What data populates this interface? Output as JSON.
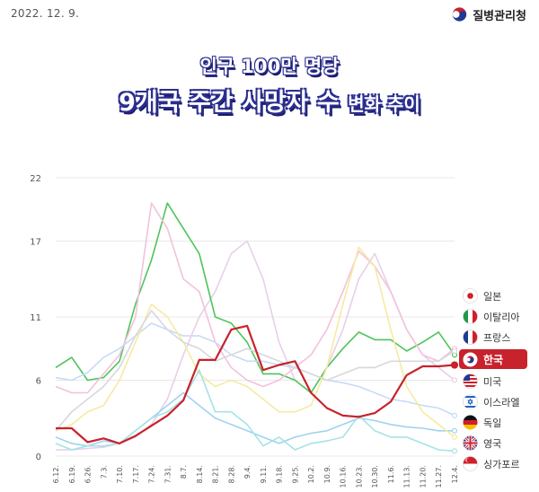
{
  "header": {
    "date": "2022. 12. 9.",
    "agency": "질병관리청"
  },
  "title": {
    "line1": "인구 100만 명당",
    "line2_main": "9개국 주간 사망자 수",
    "line2_small": "변화 추이"
  },
  "legend_flags": [
    "japan-flag-icon",
    "italy-flag-icon",
    "france-flag-icon",
    "korea-flag-icon",
    "usa-flag-icon",
    "israel-flag-icon",
    "germany-flag-icon",
    "uk-flag-icon",
    "singapore-flag-icon"
  ],
  "chart_data": {
    "type": "line",
    "xlabel": "",
    "ylabel": "",
    "ylim": [
      0,
      22
    ],
    "yticks": [
      0,
      6,
      11,
      17,
      22
    ],
    "categories": [
      "6.12.",
      "6.19.",
      "6.26.",
      "7.3.",
      "7.10.",
      "7.17.",
      "7.24.",
      "7.31.",
      "8.7.",
      "8.14.",
      "8.21.",
      "8.28.",
      "9.4.",
      "9.11.",
      "9.18.",
      "9.25.",
      "10.2.",
      "10.9.",
      "10.16.",
      "10.23.",
      "10.30.",
      "11.6.",
      "11.13.",
      "11.20.",
      "11.27.",
      "12.4."
    ],
    "grid": true,
    "legend_position": "right",
    "series": [
      {
        "name": "일본",
        "color": "#e7cfe9",
        "values": [
          0.5,
          0.5,
          0.6,
          0.7,
          1.0,
          1.5,
          2.5,
          4.5,
          8.0,
          11.0,
          13.0,
          16.0,
          17.0,
          14.0,
          9.0,
          6.0,
          5.0,
          7.0,
          10.0,
          14.0,
          16.0,
          13.0,
          10.0,
          8.0,
          7.0,
          6.0
        ]
      },
      {
        "name": "이탈리아",
        "color": "#4fc45a",
        "values": [
          7.0,
          7.8,
          6.0,
          6.2,
          7.5,
          12.0,
          15.5,
          20.0,
          18.0,
          16.0,
          11.0,
          10.5,
          9.0,
          6.5,
          6.5,
          6.0,
          5.0,
          7.0,
          8.5,
          9.8,
          9.2,
          9.2,
          8.3,
          9.0,
          9.8,
          8.0
        ]
      },
      {
        "name": "프랑스",
        "color": "#f2c2dc",
        "values": [
          5.5,
          5.0,
          5.0,
          6.5,
          8.0,
          11.0,
          20.0,
          18.0,
          14.0,
          13.0,
          9.0,
          7.0,
          6.0,
          5.5,
          6.0,
          7.0,
          8.0,
          10.0,
          13.0,
          16.2,
          15.0,
          13.0,
          10.0,
          8.0,
          7.5,
          8.5
        ]
      },
      {
        "name": "한국",
        "color": "#c8222c",
        "values": [
          2.2,
          2.2,
          1.1,
          1.4,
          1.0,
          1.6,
          2.4,
          3.2,
          4.4,
          7.6,
          7.6,
          10.0,
          10.3,
          6.8,
          7.2,
          7.5,
          5.0,
          3.8,
          3.2,
          3.1,
          3.4,
          4.3,
          6.4,
          7.1,
          7.1,
          7.2
        ]
      },
      {
        "name": "미국",
        "color": "#c7dbf7",
        "values": [
          6.2,
          6.0,
          6.6,
          7.8,
          8.5,
          9.5,
          10.5,
          10.0,
          9.5,
          9.5,
          9.0,
          8.0,
          7.5,
          7.5,
          7.2,
          7.0,
          6.5,
          6.0,
          5.8,
          5.5,
          5.0,
          4.5,
          4.3,
          4.0,
          3.8,
          3.2
        ]
      },
      {
        "name": "이스라엘",
        "color": "#9fd3ee",
        "values": [
          1.5,
          1.0,
          0.8,
          1.2,
          1.0,
          2.0,
          3.0,
          4.0,
          5.0,
          4.0,
          3.0,
          2.5,
          2.0,
          1.5,
          1.0,
          1.5,
          1.8,
          2.0,
          2.5,
          3.0,
          2.8,
          2.5,
          2.3,
          2.2,
          2.0,
          2.0
        ]
      },
      {
        "name": "독일",
        "color": "#f6eaa2",
        "values": [
          2.0,
          2.5,
          3.5,
          4.0,
          6.0,
          9.0,
          12.0,
          11.0,
          9.0,
          6.5,
          5.5,
          6.0,
          5.5,
          4.5,
          3.5,
          3.5,
          4.0,
          7.0,
          12.0,
          16.5,
          15.0,
          10.0,
          5.5,
          3.5,
          2.5,
          1.5
        ]
      },
      {
        "name": "영국",
        "color": "#d8d8dc",
        "values": [
          2.0,
          3.5,
          4.5,
          5.5,
          7.0,
          9.5,
          11.5,
          10.0,
          9.0,
          8.5,
          7.5,
          8.0,
          8.5,
          8.0,
          7.5,
          7.0,
          6.5,
          6.0,
          6.5,
          7.0,
          7.0,
          7.5,
          7.5,
          7.5,
          7.5,
          8.3
        ]
      },
      {
        "name": "싱가포르",
        "color": "#a6e3e6",
        "values": [
          1.0,
          0.5,
          0.8,
          0.8,
          1.0,
          2.0,
          3.0,
          3.5,
          4.5,
          6.8,
          3.5,
          3.5,
          2.5,
          0.8,
          1.5,
          0.5,
          1.0,
          1.2,
          1.5,
          3.2,
          2.0,
          1.5,
          1.5,
          1.0,
          0.5,
          0.4
        ]
      }
    ]
  }
}
